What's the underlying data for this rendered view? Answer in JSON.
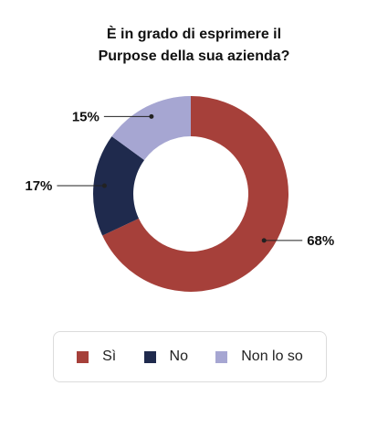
{
  "chart_data": {
    "type": "pie",
    "style": "donut",
    "title_lines": [
      "È in grado di esprimere il",
      "Purpose della sua azienda?"
    ],
    "categories": [
      "Sì",
      "No",
      "Non lo so"
    ],
    "values": [
      68,
      17,
      15
    ],
    "value_labels": [
      "68%",
      "17%",
      "15%"
    ],
    "colors": [
      "#a6403a",
      "#1f2a4d",
      "#a6a6d2"
    ],
    "legend_placement": "bottom"
  }
}
